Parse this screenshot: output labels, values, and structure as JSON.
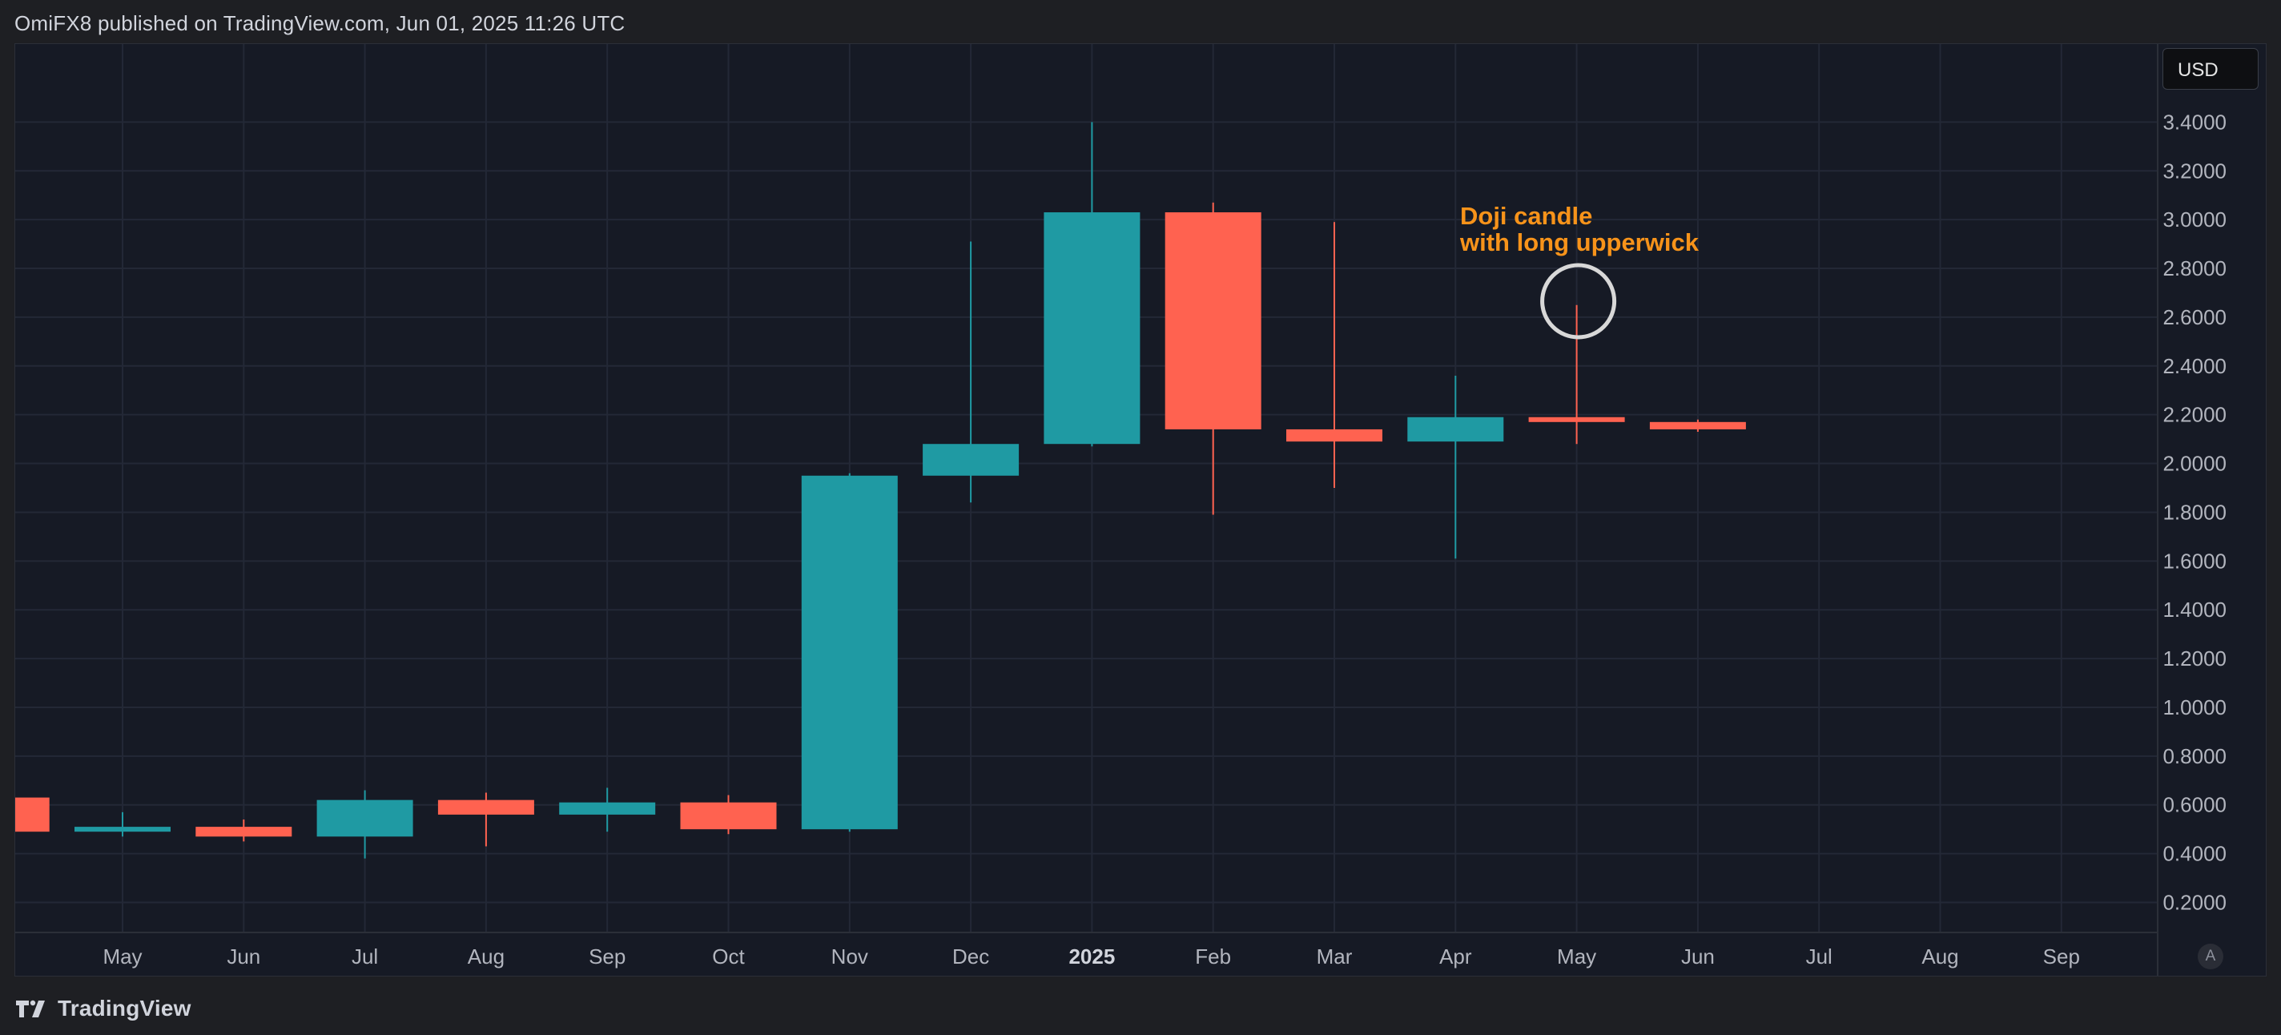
{
  "header": {
    "text": "OmiFX8 published on TradingView.com, Jun 01, 2025 11:26 UTC"
  },
  "footer": {
    "brand": "TradingView",
    "logo_icon": "tradingview-logo-icon"
  },
  "price_scale": {
    "currency": "USD",
    "auto_scale_label": "A"
  },
  "chart_data": {
    "type": "candlestick",
    "title": "",
    "xlabel": "",
    "ylabel": "",
    "ylim": [
      0.08,
      3.72
    ],
    "y_ticks": [
      "0.2000",
      "0.4000",
      "0.6000",
      "0.8000",
      "1.0000",
      "1.2000",
      "1.4000",
      "1.6000",
      "1.8000",
      "2.0000",
      "2.2000",
      "2.4000",
      "2.6000",
      "2.8000",
      "3.0000",
      "3.2000",
      "3.4000"
    ],
    "x_ticks": [
      "May",
      "Jun",
      "Jul",
      "Aug",
      "Sep",
      "Oct",
      "Nov",
      "Dec",
      "2025",
      "Feb",
      "Mar",
      "Apr",
      "May",
      "Jun",
      "Jul",
      "Aug",
      "Sep"
    ],
    "x_tick_bold": [
      false,
      false,
      false,
      false,
      false,
      false,
      false,
      false,
      true,
      false,
      false,
      false,
      false,
      false,
      false,
      false,
      false
    ],
    "grid": true,
    "colors": {
      "up": "#26a69a",
      "down": "#ef5350",
      "up_display": "#1f9aa3",
      "down_display": "#ff6250",
      "annotation": "#f7931a",
      "circle": "#d8d8d8"
    },
    "candles": [
      {
        "month": "Apr 2024",
        "open": 0.63,
        "high": 0.63,
        "low": 0.49,
        "close": 0.49
      },
      {
        "month": "May 2024",
        "open": 0.49,
        "high": 0.57,
        "low": 0.47,
        "close": 0.51
      },
      {
        "month": "Jun 2024",
        "open": 0.51,
        "high": 0.54,
        "low": 0.45,
        "close": 0.47
      },
      {
        "month": "Jul 2024",
        "open": 0.47,
        "high": 0.66,
        "low": 0.38,
        "close": 0.62
      },
      {
        "month": "Aug 2024",
        "open": 0.62,
        "high": 0.65,
        "low": 0.43,
        "close": 0.56
      },
      {
        "month": "Sep 2024",
        "open": 0.56,
        "high": 0.67,
        "low": 0.49,
        "close": 0.61
      },
      {
        "month": "Oct 2024",
        "open": 0.61,
        "high": 0.64,
        "low": 0.48,
        "close": 0.5
      },
      {
        "month": "Nov 2024",
        "open": 0.5,
        "high": 1.96,
        "low": 0.49,
        "close": 1.95
      },
      {
        "month": "Dec 2024",
        "open": 1.95,
        "high": 2.91,
        "low": 1.84,
        "close": 2.08
      },
      {
        "month": "Jan 2025",
        "open": 2.08,
        "high": 3.4,
        "low": 2.07,
        "close": 3.03
      },
      {
        "month": "Feb 2025",
        "open": 3.03,
        "high": 3.07,
        "low": 1.79,
        "close": 2.14
      },
      {
        "month": "Mar 2025",
        "open": 2.14,
        "high": 2.99,
        "low": 1.9,
        "close": 2.09
      },
      {
        "month": "Apr 2025",
        "open": 2.09,
        "high": 2.36,
        "low": 1.61,
        "close": 2.19
      },
      {
        "month": "May 2025",
        "open": 2.19,
        "high": 2.65,
        "low": 2.08,
        "close": 2.17
      },
      {
        "month": "Jun 2025",
        "open": 2.17,
        "high": 2.18,
        "low": 2.13,
        "close": 2.14
      }
    ],
    "annotation": {
      "text_lines": [
        "Doji candle",
        "with long upperwick"
      ],
      "target_month": "May 2025"
    }
  }
}
